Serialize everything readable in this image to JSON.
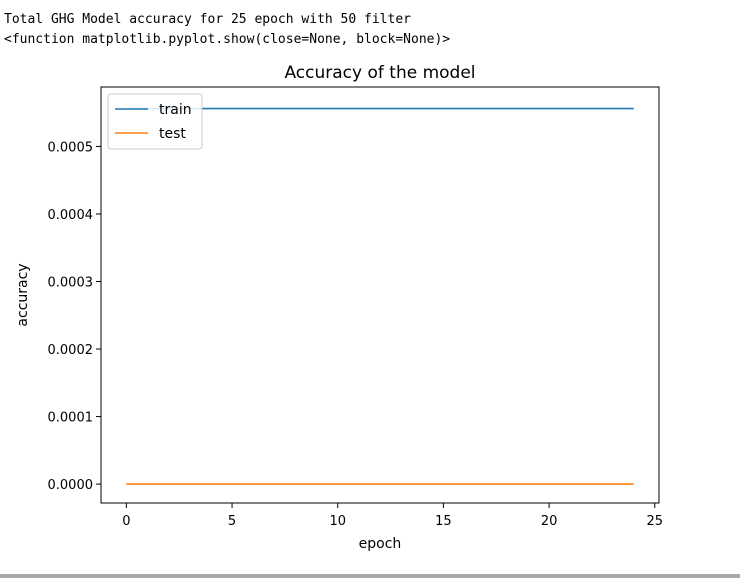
{
  "output": {
    "line1": "Total GHG Model accuracy for 25 epoch with 50 filter",
    "line2": "<function matplotlib.pyplot.show(close=None, block=None)>"
  },
  "chart_data": {
    "type": "line",
    "title": "Accuracy of the model",
    "xlabel": "epoch",
    "ylabel": "accuracy",
    "xlim": [
      -1.2,
      25.2
    ],
    "ylim": [
      -2.8e-05,
      0.000588
    ],
    "xticks": [
      0,
      5,
      10,
      15,
      20,
      25
    ],
    "xtick_labels": [
      "0",
      "5",
      "10",
      "15",
      "20",
      "25"
    ],
    "yticks": [
      0,
      0.0001,
      0.0002,
      0.0003,
      0.0004,
      0.0005
    ],
    "ytick_labels": [
      "0.0000",
      "0.0001",
      "0.0002",
      "0.0003",
      "0.0004",
      "0.0005"
    ],
    "legend_position": "top-left",
    "x": [
      0,
      1,
      2,
      3,
      4,
      5,
      6,
      7,
      8,
      9,
      10,
      11,
      12,
      13,
      14,
      15,
      16,
      17,
      18,
      19,
      20,
      21,
      22,
      23,
      24
    ],
    "series": [
      {
        "name": "train",
        "color": "#1f77b4",
        "values": [
          0.000556,
          0.000556,
          0.000556,
          0.000556,
          0.000556,
          0.000556,
          0.000556,
          0.000556,
          0.000556,
          0.000556,
          0.000556,
          0.000556,
          0.000556,
          0.000556,
          0.000556,
          0.000556,
          0.000556,
          0.000556,
          0.000556,
          0.000556,
          0.000556,
          0.000556,
          0.000556,
          0.000556,
          0.000556
        ]
      },
      {
        "name": "test",
        "color": "#ff7f0e",
        "values": [
          0,
          0,
          0,
          0,
          0,
          0,
          0,
          0,
          0,
          0,
          0,
          0,
          0,
          0,
          0,
          0,
          0,
          0,
          0,
          0,
          0,
          0,
          0,
          0,
          0
        ]
      }
    ]
  }
}
